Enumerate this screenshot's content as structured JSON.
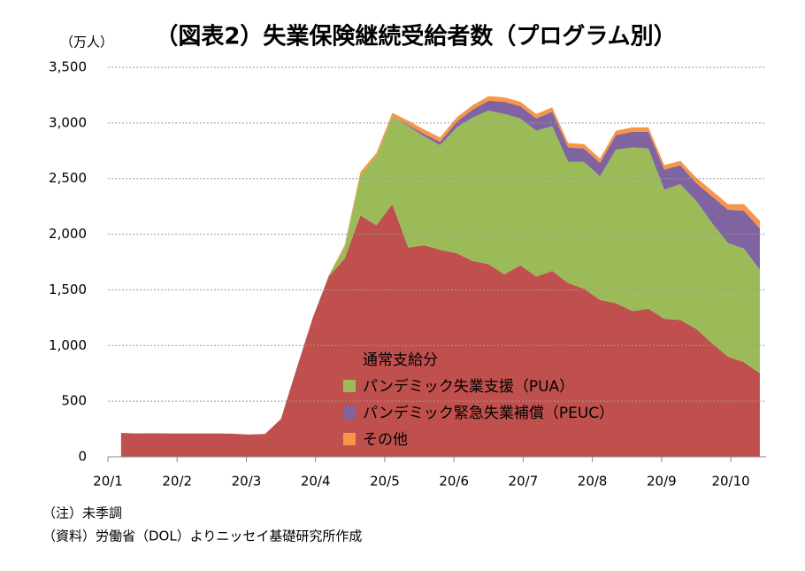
{
  "chart_data": {
    "type": "stacked_area",
    "title": "（図表2）失業保険継続受給者数（プログラム別）",
    "y_label": "（万人）",
    "notes": [
      "（注）未季調",
      "（資料）労働省（DOL）よりニッセイ基礎研究所作成"
    ],
    "x": [
      0.19,
      0.42,
      0.65,
      0.88,
      1.11,
      1.34,
      1.57,
      1.8,
      2.03,
      2.27,
      2.5,
      2.73,
      2.96,
      3.19,
      3.42,
      3.65,
      3.88,
      4.11,
      4.34,
      4.57,
      4.8,
      5.04,
      5.27,
      5.5,
      5.73,
      5.96,
      6.19,
      6.42,
      6.65,
      6.88,
      7.11,
      7.34,
      7.58,
      7.81,
      8.04,
      8.27,
      8.5,
      8.73,
      8.96,
      9.19,
      9.42
    ],
    "xlim": [
      0,
      9.51
    ],
    "xticks": [
      {
        "value": 0,
        "label": "20/1"
      },
      {
        "value": 1,
        "label": "20/2"
      },
      {
        "value": 2,
        "label": "20/3"
      },
      {
        "value": 3,
        "label": "20/4"
      },
      {
        "value": 4,
        "label": "20/5"
      },
      {
        "value": 5,
        "label": "20/6"
      },
      {
        "value": 6,
        "label": "20/7"
      },
      {
        "value": 7,
        "label": "20/8"
      },
      {
        "value": 8,
        "label": "20/9"
      },
      {
        "value": 9,
        "label": "20/10"
      }
    ],
    "ylim": [
      0,
      3500
    ],
    "yticks": [
      0,
      500,
      {
        "value": 1000,
        "label": "1,000"
      },
      {
        "value": 1500,
        "label": "1,500"
      },
      {
        "value": 2000,
        "label": "2,000"
      },
      {
        "value": 2500,
        "label": "2,500"
      },
      {
        "value": 3000,
        "label": "3,000"
      },
      {
        "value": 3500,
        "label": "3,500"
      }
    ],
    "grid": true,
    "series": [
      {
        "name": "通常支給分",
        "color": "#c0504d",
        "values": [
          215,
          210,
          212,
          210,
          210,
          210,
          210,
          208,
          200,
          205,
          340,
          800,
          1250,
          1620,
          1780,
          2170,
          2080,
          2270,
          1880,
          1900,
          1860,
          1830,
          1760,
          1730,
          1640,
          1720,
          1620,
          1670,
          1560,
          1510,
          1410,
          1380,
          1310,
          1330,
          1240,
          1230,
          1150,
          1020,
          900,
          850,
          750
        ]
      },
      {
        "name": "パンデミック失業支援（PUA）",
        "color": "#9bbb59",
        "values": [
          0,
          0,
          0,
          0,
          0,
          0,
          0,
          0,
          0,
          0,
          0,
          0,
          0,
          10,
          100,
          360,
          620,
          790,
          1090,
          980,
          940,
          1130,
          1290,
          1380,
          1440,
          1320,
          1310,
          1300,
          1090,
          1140,
          1110,
          1380,
          1470,
          1440,
          1160,
          1220,
          1150,
          1080,
          1020,
          1020,
          930
        ]
      },
      {
        "name": "パンデミック緊急失業補償（PEUC）",
        "color": "#8064a2",
        "values": [
          0,
          0,
          0,
          0,
          0,
          0,
          0,
          0,
          0,
          0,
          0,
          0,
          0,
          0,
          0,
          0,
          0,
          0,
          10,
          20,
          30,
          50,
          70,
          90,
          110,
          110,
          110,
          130,
          130,
          120,
          120,
          130,
          140,
          150,
          180,
          170,
          160,
          240,
          300,
          340,
          370
        ]
      },
      {
        "name": "その他",
        "color": "#f79646",
        "values": [
          0,
          0,
          0,
          0,
          0,
          0,
          0,
          0,
          0,
          0,
          0,
          0,
          0,
          0,
          20,
          30,
          30,
          30,
          40,
          40,
          40,
          40,
          40,
          40,
          40,
          40,
          40,
          40,
          40,
          40,
          40,
          40,
          40,
          40,
          40,
          40,
          50,
          50,
          50,
          60,
          70
        ]
      }
    ]
  }
}
